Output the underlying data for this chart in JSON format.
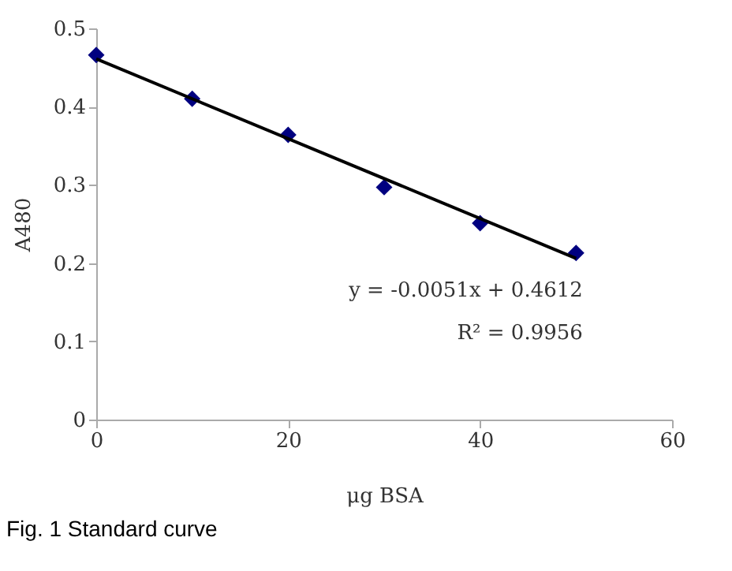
{
  "chart_data": {
    "type": "scatter",
    "xlabel": "μg BSA",
    "ylabel": "A480",
    "annotations": [
      "y = -0.0051x + 0.4612",
      "R² = 0.9956",
      "Fig. 1 Standard curve"
    ],
    "series": [
      {
        "color": "#000080",
        "marker": "diamond",
        "x": [
          0,
          10,
          20,
          30,
          40,
          50
        ],
        "values": [
          0.466,
          0.41,
          0.364,
          0.297,
          0.251,
          0.213
        ]
      },
      {
        "type": "line",
        "color": "#000000",
        "line_style": "solid",
        "x": [
          0,
          50
        ],
        "values": [
          0.461,
          0.206
        ]
      }
    ],
    "xlim": [
      0,
      60
    ],
    "xticks": [
      0,
      20,
      40,
      60
    ],
    "ylim": [
      0,
      0.5
    ],
    "yticks": [
      0,
      0.1,
      0.2,
      0.3,
      0.4,
      0.5
    ],
    "grid": false
  }
}
